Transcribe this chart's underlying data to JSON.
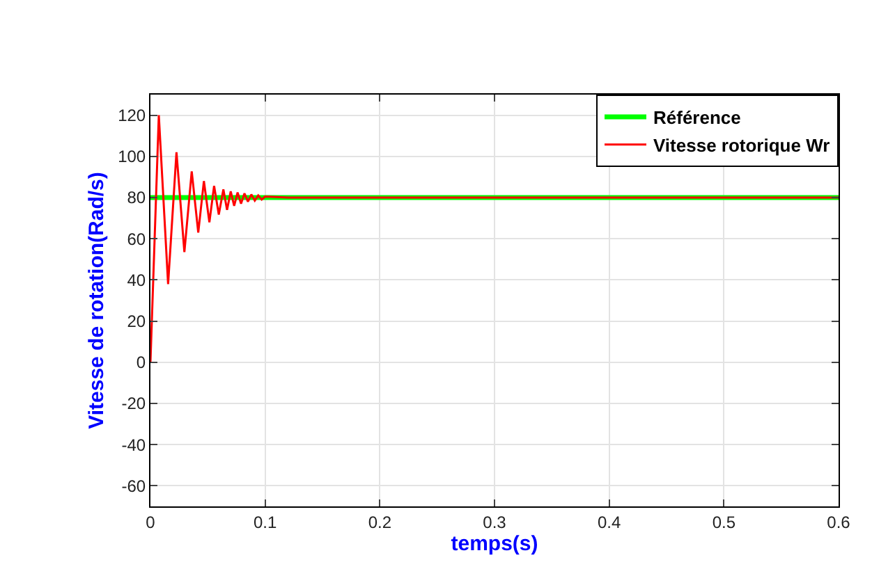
{
  "chart_data": {
    "type": "line",
    "xlabel": "temps(s)",
    "ylabel": "Vitesse de rotation(Rad/s)",
    "xlim": [
      0,
      0.6
    ],
    "xticks": [
      0,
      0.1,
      0.2,
      0.3,
      0.4,
      0.5,
      0.6
    ],
    "ylim": [
      -70,
      130
    ],
    "yticks": [
      -60,
      -40,
      -20,
      0,
      20,
      40,
      60,
      80,
      100,
      120
    ],
    "grid": true,
    "legend": "top right",
    "marker": "none",
    "line_style": "solid",
    "series": [
      {
        "name": "Référence",
        "color": "#00ff00",
        "x": [
          0,
          0.6
        ],
        "values": [
          80,
          80
        ]
      },
      {
        "name": "Vitesse rotorique Wr",
        "color": "#ff0000",
        "x": [
          0,
          0.0073,
          0.0154,
          0.0227,
          0.0296,
          0.036,
          0.0417,
          0.0466,
          0.0514,
          0.0555,
          0.0596,
          0.0636,
          0.0668,
          0.07,
          0.073,
          0.076,
          0.079,
          0.082,
          0.085,
          0.088,
          0.091,
          0.094,
          0.097,
          0.1,
          0.12,
          0.6
        ],
        "values": [
          0,
          120,
          38,
          102,
          53.5,
          92.7,
          63,
          88,
          68,
          85.7,
          71.7,
          84,
          74,
          83,
          76,
          82.5,
          77,
          82,
          78,
          81.5,
          78.5,
          81,
          79,
          80.5,
          80,
          80
        ]
      }
    ]
  }
}
